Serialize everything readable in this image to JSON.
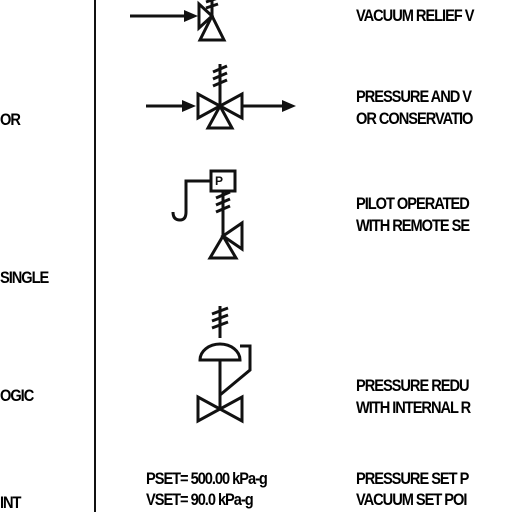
{
  "left_column": {
    "items": [
      "OR",
      "SINGLE",
      "OGIC",
      "INT"
    ]
  },
  "descriptions": {
    "vacuum_relief": [
      "VACUUM RELIEF V"
    ],
    "pressure_vacuum": [
      "PRESSURE AND  V",
      "OR CONSERVATIO"
    ],
    "pilot_operated": [
      "PILOT OPERATED",
      "WITH REMOTE SE"
    ],
    "pressure_reducing": [
      "PRESSURE REDU",
      "WITH INTERNAL R"
    ],
    "set_points": [
      "PRESSURE SET P",
      "VACUUM SET POI"
    ]
  },
  "symbols": {
    "pilot_label": "P",
    "pset": "PSET= 500.00 kPa-g",
    "vset": "VSET= 90.0 kPa-g"
  }
}
